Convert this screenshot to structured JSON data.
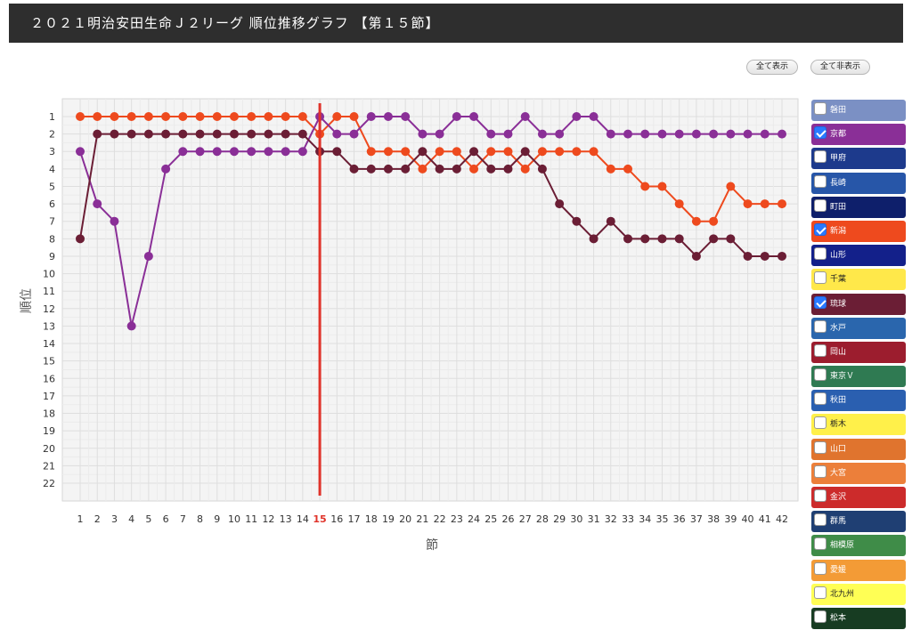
{
  "header": {
    "title": "２０２１明治安田生命Ｊ２リーグ 順位推移グラフ 【第１５節】"
  },
  "controls": {
    "show_all": "全て表示",
    "hide_all": "全て非表示"
  },
  "legend": [
    {
      "label": "磐田",
      "color": "#7b90c4",
      "text_color": "#ffffff",
      "checked": false
    },
    {
      "label": "京都",
      "color": "#8a2f97",
      "text_color": "#ffffff",
      "checked": true
    },
    {
      "label": "甲府",
      "color": "#1d3a8c",
      "text_color": "#ffffff",
      "checked": false
    },
    {
      "label": "長崎",
      "color": "#2756a8",
      "text_color": "#ffffff",
      "checked": false
    },
    {
      "label": "町田",
      "color": "#0e1f6b",
      "text_color": "#ffffff",
      "checked": false
    },
    {
      "label": "新潟",
      "color": "#ee4a1e",
      "text_color": "#ffffff",
      "checked": true
    },
    {
      "label": "山形",
      "color": "#13208a",
      "text_color": "#ffffff",
      "checked": false
    },
    {
      "label": "千葉",
      "color": "#ffe84a",
      "text_color": "#222222",
      "checked": false
    },
    {
      "label": "琉球",
      "color": "#6b1e35",
      "text_color": "#ffffff",
      "checked": true
    },
    {
      "label": "水戸",
      "color": "#2a66ad",
      "text_color": "#ffffff",
      "checked": false
    },
    {
      "label": "岡山",
      "color": "#9c1d2e",
      "text_color": "#ffffff",
      "checked": false
    },
    {
      "label": "東京Ｖ",
      "color": "#2f7a52",
      "text_color": "#ffffff",
      "checked": false
    },
    {
      "label": "秋田",
      "color": "#2a5fb0",
      "text_color": "#ffffff",
      "checked": false
    },
    {
      "label": "栃木",
      "color": "#fff04a",
      "text_color": "#222222",
      "checked": false
    },
    {
      "label": "山口",
      "color": "#e0742e",
      "text_color": "#ffffff",
      "checked": false
    },
    {
      "label": "大宮",
      "color": "#ec7f3a",
      "text_color": "#ffffff",
      "checked": false
    },
    {
      "label": "金沢",
      "color": "#cc2b2b",
      "text_color": "#ffffff",
      "checked": false
    },
    {
      "label": "群馬",
      "color": "#1f3f73",
      "text_color": "#ffffff",
      "checked": false
    },
    {
      "label": "相模原",
      "color": "#3f8c48",
      "text_color": "#ffffff",
      "checked": false
    },
    {
      "label": "愛媛",
      "color": "#f39b36",
      "text_color": "#ffffff",
      "checked": false
    },
    {
      "label": "北九州",
      "color": "#ffff55",
      "text_color": "#222222",
      "checked": false
    },
    {
      "label": "松本",
      "color": "#173c22",
      "text_color": "#ffffff",
      "checked": false
    }
  ],
  "chart_data": {
    "type": "line",
    "xlabel": "節",
    "ylabel": "順位",
    "x": [
      1,
      2,
      3,
      4,
      5,
      6,
      7,
      8,
      9,
      10,
      11,
      12,
      13,
      14,
      15,
      16,
      17,
      18,
      19,
      20,
      21,
      22,
      23,
      24,
      25,
      26,
      27,
      28,
      29,
      30,
      31,
      32,
      33,
      34,
      35,
      36,
      37,
      38,
      39,
      40,
      41,
      42
    ],
    "xlim": [
      1,
      42
    ],
    "ylim": [
      1,
      22
    ],
    "y_inverted": true,
    "grid": true,
    "current_round": 15,
    "current_round_color": "#e0332a",
    "legend_position": "right",
    "series": [
      {
        "name": "新潟",
        "color": "#ee4a1e",
        "values": [
          1,
          1,
          1,
          1,
          1,
          1,
          1,
          1,
          1,
          1,
          1,
          1,
          1,
          1,
          2,
          1,
          1,
          3,
          3,
          3,
          4,
          3,
          3,
          4,
          3,
          3,
          4,
          3,
          3,
          3,
          3,
          4,
          4,
          5,
          5,
          6,
          7,
          7,
          5,
          6,
          6,
          6
        ]
      },
      {
        "name": "京都",
        "color": "#8a2f97",
        "values": [
          3,
          6,
          7,
          13,
          9,
          4,
          3,
          3,
          3,
          3,
          3,
          3,
          3,
          3,
          1,
          2,
          2,
          1,
          1,
          1,
          2,
          2,
          1,
          1,
          2,
          2,
          1,
          2,
          2,
          1,
          1,
          2,
          2,
          2,
          2,
          2,
          2,
          2,
          2,
          2,
          2,
          2
        ]
      },
      {
        "name": "琉球",
        "color": "#6b1e35",
        "values": [
          8,
          2,
          2,
          2,
          2,
          2,
          2,
          2,
          2,
          2,
          2,
          2,
          2,
          2,
          3,
          3,
          4,
          4,
          4,
          4,
          3,
          4,
          4,
          3,
          4,
          4,
          3,
          4,
          6,
          7,
          8,
          7,
          8,
          8,
          8,
          8,
          9,
          8,
          8,
          9,
          9,
          9
        ]
      }
    ]
  }
}
